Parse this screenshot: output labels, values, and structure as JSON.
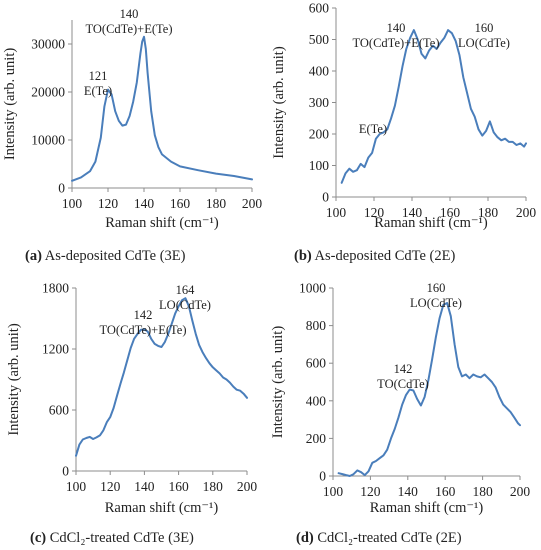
{
  "colors": {
    "series": "#4a7ebb",
    "axis": "#8c8c8c",
    "text": "#222222"
  },
  "chart_data": [
    {
      "type": "line",
      "caption_letter": "(a)",
      "caption_text": " As-deposited CdTe (3E)",
      "xlabel": "Raman shift (cm⁻¹)",
      "ylabel": "Intensity (arb. unit)",
      "xlim": [
        100,
        200
      ],
      "ylim": [
        0,
        35000
      ],
      "xticks": [
        100,
        120,
        140,
        160,
        180,
        200
      ],
      "yticks": [
        0,
        10000,
        20000,
        30000
      ],
      "grid": false,
      "legend": "none",
      "series": [
        {
          "x": [
            100,
            105,
            110,
            113,
            116,
            118,
            120,
            122,
            124,
            126,
            128,
            130,
            132,
            134,
            136,
            138,
            139,
            140,
            141,
            142,
            144,
            146,
            148,
            150,
            155,
            160,
            170,
            180,
            190,
            200
          ],
          "values": [
            1500,
            2200,
            3500,
            5500,
            10500,
            17000,
            20500,
            19500,
            16000,
            14000,
            13000,
            13200,
            15000,
            18000,
            22000,
            28000,
            30500,
            31500,
            29000,
            24000,
            16000,
            11000,
            8500,
            7000,
            5500,
            4500,
            3700,
            3000,
            2500,
            1800
          ]
        }
      ],
      "annotations": [
        {
          "lines": [
            "121",
            "E(Te)"
          ],
          "x": 121,
          "y": 20500
        },
        {
          "lines": [
            "140",
            "TO(CdTe)+E(Te)"
          ],
          "x": 140,
          "y": 31500
        }
      ]
    },
    {
      "type": "line",
      "caption_letter": "(b)",
      "caption_text": " As-deposited CdTe (2E)",
      "xlabel": "Raman shift (cm⁻¹)",
      "ylabel": "Intensity (arb. unit)",
      "xlim": [
        100,
        200
      ],
      "ylim": [
        0,
        600
      ],
      "xticks": [
        100,
        120,
        140,
        160,
        180,
        200
      ],
      "yticks": [
        0,
        100,
        200,
        300,
        400,
        500,
        600
      ],
      "grid": false,
      "legend": "none",
      "series": [
        {
          "x": [
            103,
            105,
            107,
            109,
            111,
            113,
            115,
            117,
            119,
            121,
            123,
            125,
            127,
            129,
            131,
            133,
            135,
            137,
            139,
            141,
            143,
            145,
            147,
            149,
            151,
            153,
            155,
            157,
            159,
            161,
            163,
            165,
            167,
            169,
            171,
            173,
            175,
            177,
            179,
            181,
            183,
            185,
            187,
            189,
            191,
            193,
            195,
            197,
            199,
            200
          ],
          "values": [
            45,
            75,
            90,
            80,
            85,
            105,
            95,
            125,
            140,
            185,
            200,
            205,
            215,
            250,
            290,
            350,
            415,
            470,
            505,
            530,
            500,
            455,
            440,
            465,
            480,
            470,
            490,
            505,
            530,
            520,
            495,
            450,
            380,
            330,
            280,
            255,
            215,
            195,
            210,
            240,
            205,
            190,
            180,
            185,
            175,
            175,
            165,
            170,
            160,
            170
          ]
        }
      ],
      "annotations": [
        {
          "lines": [
            "E(Te)"
          ],
          "x": 121,
          "y": 200
        },
        {
          "lines": [
            "140",
            "TO(CdTe)+E(Te)"
          ],
          "x": 140,
          "y": 530
        },
        {
          "lines": [
            "160",
            "LO(CdTe)"
          ],
          "x": 160,
          "y": 530
        }
      ]
    },
    {
      "type": "line",
      "caption_letter": "(c)",
      "caption_text": " CdCl₂-treated CdTe (3E)",
      "xlabel": "Raman shift (cm⁻¹)",
      "ylabel": "Intensity (arb. unit)",
      "xlim": [
        100,
        200
      ],
      "ylim": [
        0,
        1800
      ],
      "xticks": [
        100,
        120,
        140,
        160,
        180,
        200
      ],
      "yticks": [
        0,
        600,
        1200,
        1800
      ],
      "grid": false,
      "legend": "none",
      "series": [
        {
          "x": [
            100,
            102,
            104,
            106,
            108,
            110,
            112,
            114,
            116,
            118,
            120,
            122,
            124,
            126,
            128,
            130,
            132,
            134,
            136,
            138,
            140,
            142,
            144,
            146,
            148,
            150,
            152,
            154,
            156,
            158,
            160,
            162,
            164,
            166,
            168,
            170,
            172,
            174,
            176,
            178,
            180,
            182,
            184,
            186,
            188,
            190,
            192,
            194,
            196,
            198,
            200
          ],
          "values": [
            150,
            260,
            310,
            325,
            335,
            315,
            330,
            350,
            400,
            480,
            530,
            620,
            740,
            860,
            970,
            1090,
            1210,
            1300,
            1350,
            1390,
            1395,
            1370,
            1300,
            1250,
            1230,
            1220,
            1270,
            1350,
            1450,
            1550,
            1620,
            1680,
            1700,
            1620,
            1480,
            1350,
            1240,
            1170,
            1110,
            1060,
            1020,
            990,
            960,
            920,
            900,
            870,
            830,
            800,
            790,
            760,
            720
          ]
        }
      ],
      "annotations": [
        {
          "lines": [
            "142",
            "TO(CdTe)+E(Te)"
          ],
          "x": 142,
          "y": 1395
        },
        {
          "lines": [
            "164",
            "LO(CdTe)"
          ],
          "x": 164,
          "y": 1700
        }
      ]
    },
    {
      "type": "line",
      "caption_letter": "(d)",
      "caption_text": " CdCl₂-treated CdTe (2E)",
      "xlabel": "Raman shift (cm⁻¹)",
      "ylabel": "Intensity (arb. unit)",
      "xlim": [
        100,
        200
      ],
      "ylim": [
        0,
        1000
      ],
      "xticks": [
        100,
        120,
        140,
        160,
        180,
        200
      ],
      "yticks": [
        0,
        200,
        400,
        600,
        800,
        1000
      ],
      "grid": false,
      "legend": "none",
      "series": [
        {
          "x": [
            103,
            105,
            107,
            109,
            111,
            113,
            115,
            117,
            119,
            121,
            123,
            125,
            127,
            129,
            131,
            133,
            135,
            137,
            139,
            141,
            143,
            145,
            147,
            149,
            151,
            153,
            155,
            157,
            159,
            161,
            163,
            165,
            167,
            169,
            171,
            173,
            175,
            177,
            179,
            181,
            183,
            185,
            187,
            189,
            191,
            193,
            195,
            197,
            199,
            200
          ],
          "values": [
            15,
            10,
            5,
            0,
            10,
            30,
            20,
            5,
            25,
            70,
            80,
            95,
            110,
            140,
            200,
            250,
            310,
            380,
            430,
            460,
            455,
            410,
            375,
            420,
            510,
            620,
            740,
            840,
            910,
            920,
            850,
            700,
            580,
            530,
            540,
            520,
            540,
            530,
            525,
            540,
            520,
            500,
            470,
            420,
            380,
            360,
            340,
            310,
            280,
            270
          ]
        }
      ],
      "annotations": [
        {
          "lines": [
            "142",
            "TO(CdTe)"
          ],
          "x": 142,
          "y": 460
        },
        {
          "lines": [
            "160",
            "LO(CdTe)"
          ],
          "x": 160,
          "y": 920
        }
      ]
    }
  ]
}
